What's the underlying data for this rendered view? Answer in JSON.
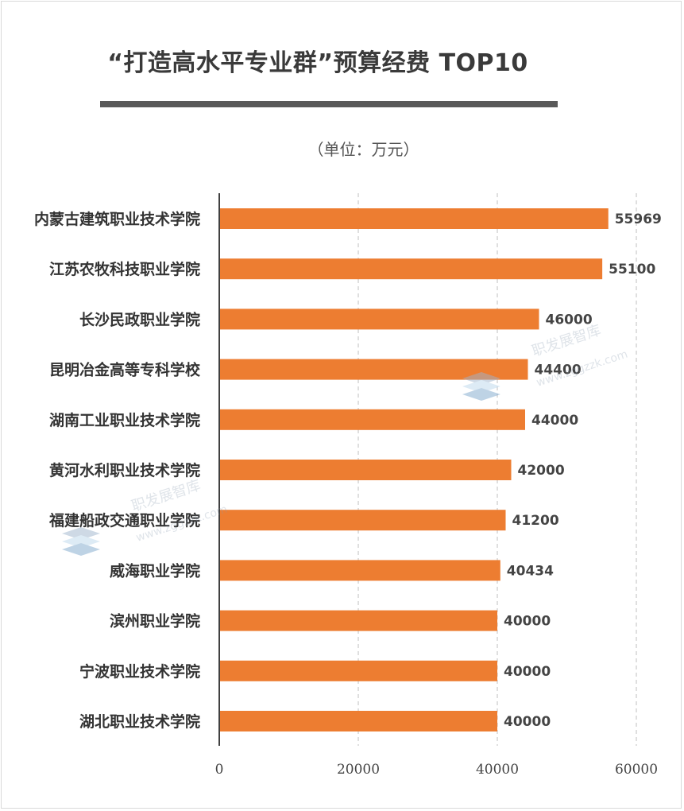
{
  "title": "“打造高水平专业群”预算经费 TOP10",
  "unit_label": "（单位：万元）",
  "watermark": {
    "text": "职发展智库",
    "url": "www.zggzzk.com"
  },
  "colors": {
    "bar": "#ed7d31",
    "axis": "#404040",
    "grid": "#bfbfbf",
    "title_rule": "#595959"
  },
  "chart_data": {
    "type": "bar",
    "orientation": "horizontal",
    "title": "“打造高水平专业群”预算经费 TOP10",
    "subtitle": "（单位：万元）",
    "categories": [
      "内蒙古建筑职业技术学院",
      "江苏农牧科技职业学院",
      "长沙民政职业学院",
      "昆明冶金高等专科学校",
      "湖南工业职业技术学院",
      "黄河水利职业技术学院",
      "福建船政交通职业学院",
      "威海职业学院",
      "滨州职业学院",
      "宁波职业技术学院",
      "湖北职业技术学院"
    ],
    "values": [
      55969,
      55100,
      46000,
      44400,
      44000,
      42000,
      41200,
      40434,
      40000,
      40000,
      40000
    ],
    "xlim": [
      0,
      60000
    ],
    "xticks": [
      "0",
      "20000",
      "40000",
      "60000"
    ],
    "grid": "vertical dashed",
    "legend": "none"
  }
}
